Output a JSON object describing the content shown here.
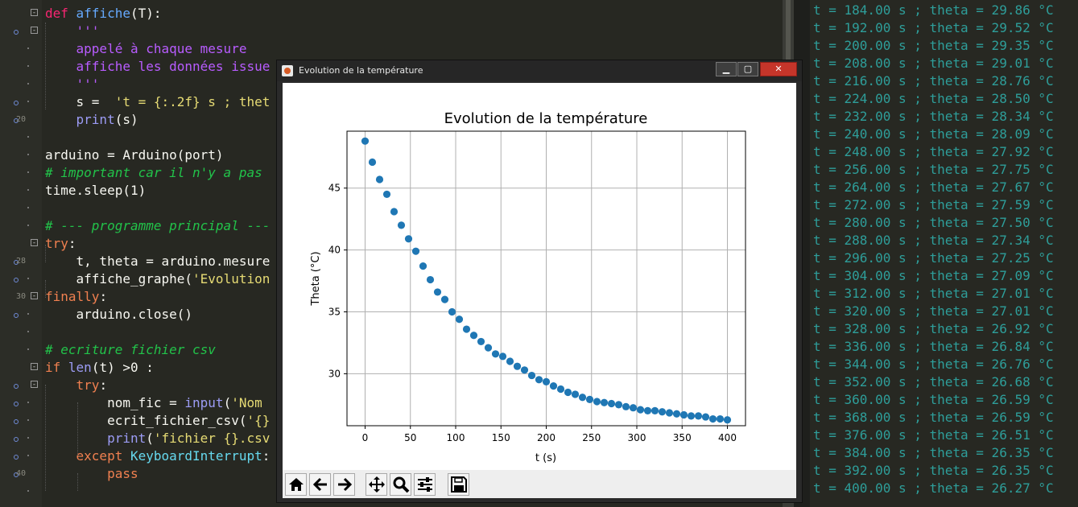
{
  "editor": {
    "line_numbers": [
      {
        "row": 6,
        "label": "20"
      },
      {
        "row": 14,
        "label": "28"
      },
      {
        "row": 16,
        "label": "30"
      },
      {
        "row": 26,
        "label": "40"
      }
    ],
    "lines": [
      [
        {
          "t": "def ",
          "c": "kw"
        },
        {
          "t": "affiche",
          "c": "fn"
        },
        {
          "t": "(T):",
          "c": ""
        }
      ],
      [
        {
          "t": "    '''",
          "c": "st"
        }
      ],
      [
        {
          "t": "    appelé à chaque mesure",
          "c": "st"
        }
      ],
      [
        {
          "t": "    affiche les données issue",
          "c": "st"
        }
      ],
      [
        {
          "t": "    '''",
          "c": "st"
        }
      ],
      [
        {
          "t": "    s =  ",
          "c": ""
        },
        {
          "t": "'t = {:.2f} s ; thet",
          "c": "str"
        }
      ],
      [
        {
          "t": "    ",
          "c": ""
        },
        {
          "t": "print",
          "c": "bi"
        },
        {
          "t": "(s)",
          "c": ""
        }
      ],
      [
        {
          "t": "",
          "c": ""
        }
      ],
      [
        {
          "t": "arduino = Arduino(port)",
          "c": ""
        }
      ],
      [
        {
          "t": "# important car il n'y a pas",
          "c": "cm"
        }
      ],
      [
        {
          "t": "time.sleep(1)",
          "c": ""
        }
      ],
      [
        {
          "t": "",
          "c": ""
        }
      ],
      [
        {
          "t": "# --- programme principal ---",
          "c": "cm"
        }
      ],
      [
        {
          "t": "try",
          "c": "kw2"
        },
        {
          "t": ":",
          "c": ""
        }
      ],
      [
        {
          "t": "    t, theta = arduino.mesure",
          "c": ""
        }
      ],
      [
        {
          "t": "    affiche_graphe(",
          "c": ""
        },
        {
          "t": "'Evolution",
          "c": "str"
        }
      ],
      [
        {
          "t": "finally",
          "c": "kw2"
        },
        {
          "t": ":",
          "c": ""
        }
      ],
      [
        {
          "t": "    arduino.close()",
          "c": ""
        }
      ],
      [
        {
          "t": "",
          "c": ""
        }
      ],
      [
        {
          "t": "# ecriture fichier csv",
          "c": "cm"
        }
      ],
      [
        {
          "t": "if ",
          "c": "kw2"
        },
        {
          "t": "len",
          "c": "bi"
        },
        {
          "t": "(t) >0 :",
          "c": ""
        }
      ],
      [
        {
          "t": "    ",
          "c": ""
        },
        {
          "t": "try",
          "c": "kw2"
        },
        {
          "t": ":",
          "c": ""
        }
      ],
      [
        {
          "t": "        nom_fic = ",
          "c": ""
        },
        {
          "t": "input",
          "c": "bi"
        },
        {
          "t": "(",
          "c": ""
        },
        {
          "t": "'Nom",
          "c": "str"
        }
      ],
      [
        {
          "t": "        ecrit_fichier_csv(",
          "c": ""
        },
        {
          "t": "'{}",
          "c": "str"
        }
      ],
      [
        {
          "t": "        ",
          "c": ""
        },
        {
          "t": "print",
          "c": "bi"
        },
        {
          "t": "(",
          "c": ""
        },
        {
          "t": "'fichier {}.csv",
          "c": "str"
        }
      ],
      [
        {
          "t": "    ",
          "c": ""
        },
        {
          "t": "except ",
          "c": "kw2"
        },
        {
          "t": "KeyboardInterrupt",
          "c": "cls"
        },
        {
          "t": ":",
          "c": ""
        }
      ],
      [
        {
          "t": "        ",
          "c": ""
        },
        {
          "t": "pass",
          "c": "kw2"
        }
      ]
    ]
  },
  "console": {
    "lines": [
      "t = 184.00 s ; theta = 29.86 °C",
      "t = 192.00 s ; theta = 29.52 °C",
      "t = 200.00 s ; theta = 29.35 °C",
      "t = 208.00 s ; theta = 29.01 °C",
      "t = 216.00 s ; theta = 28.76 °C",
      "t = 224.00 s ; theta = 28.50 °C",
      "t = 232.00 s ; theta = 28.34 °C",
      "t = 240.00 s ; theta = 28.09 °C",
      "t = 248.00 s ; theta = 27.92 °C",
      "t = 256.00 s ; theta = 27.75 °C",
      "t = 264.00 s ; theta = 27.67 °C",
      "t = 272.00 s ; theta = 27.59 °C",
      "t = 280.00 s ; theta = 27.50 °C",
      "t = 288.00 s ; theta = 27.34 °C",
      "t = 296.00 s ; theta = 27.25 °C",
      "t = 304.00 s ; theta = 27.09 °C",
      "t = 312.00 s ; theta = 27.01 °C",
      "t = 320.00 s ; theta = 27.01 °C",
      "t = 328.00 s ; theta = 26.92 °C",
      "t = 336.00 s ; theta = 26.84 °C",
      "t = 344.00 s ; theta = 26.76 °C",
      "t = 352.00 s ; theta = 26.68 °C",
      "t = 360.00 s ; theta = 26.59 °C",
      "t = 368.00 s ; theta = 26.59 °C",
      "t = 376.00 s ; theta = 26.51 °C",
      "t = 384.00 s ; theta = 26.35 °C",
      "t = 392.00 s ; theta = 26.35 °C",
      "t = 400.00 s ; theta = 26.27 °C"
    ]
  },
  "window": {
    "title": "Evolution de la température",
    "controls": {
      "minimize": "▁",
      "maximize": "▢",
      "close": "✕"
    },
    "toolbar": [
      {
        "name": "home-icon",
        "label": "home"
      },
      {
        "name": "back-arrow-icon",
        "label": "back"
      },
      {
        "name": "forward-arrow-icon",
        "label": "forward"
      },
      {
        "name": "pan-icon",
        "label": "pan"
      },
      {
        "name": "zoom-icon",
        "label": "zoom"
      },
      {
        "name": "configure-subplots-icon",
        "label": "subplots"
      },
      {
        "name": "save-icon",
        "label": "save"
      }
    ]
  },
  "chart_data": {
    "type": "scatter",
    "title": "Evolution de la température",
    "xlabel": "t (s)",
    "ylabel": "Theta (°C)",
    "xlim": [
      -20,
      420
    ],
    "ylim": [
      25.8,
      49.6
    ],
    "xticks": [
      0,
      50,
      100,
      150,
      200,
      250,
      300,
      350,
      400
    ],
    "yticks": [
      30,
      35,
      40,
      45
    ],
    "grid": true,
    "color": "#1f77b4",
    "x": [
      0,
      8,
      16,
      24,
      32,
      40,
      48,
      56,
      64,
      72,
      80,
      88,
      96,
      104,
      112,
      120,
      128,
      136,
      144,
      152,
      160,
      168,
      176,
      184,
      192,
      200,
      208,
      216,
      224,
      232,
      240,
      248,
      256,
      264,
      272,
      280,
      288,
      296,
      304,
      312,
      320,
      328,
      336,
      344,
      352,
      360,
      368,
      376,
      384,
      392,
      400
    ],
    "y": [
      48.8,
      47.1,
      45.7,
      44.5,
      43.1,
      42.0,
      40.9,
      39.9,
      38.7,
      37.6,
      36.6,
      36.0,
      35.0,
      34.4,
      33.6,
      33.1,
      32.6,
      32.1,
      31.6,
      31.4,
      31.0,
      30.6,
      30.3,
      29.86,
      29.52,
      29.35,
      29.01,
      28.76,
      28.5,
      28.34,
      28.09,
      27.92,
      27.75,
      27.67,
      27.59,
      27.5,
      27.34,
      27.25,
      27.09,
      27.01,
      27.01,
      26.92,
      26.84,
      26.76,
      26.68,
      26.59,
      26.59,
      26.51,
      26.35,
      26.35,
      26.27
    ]
  }
}
